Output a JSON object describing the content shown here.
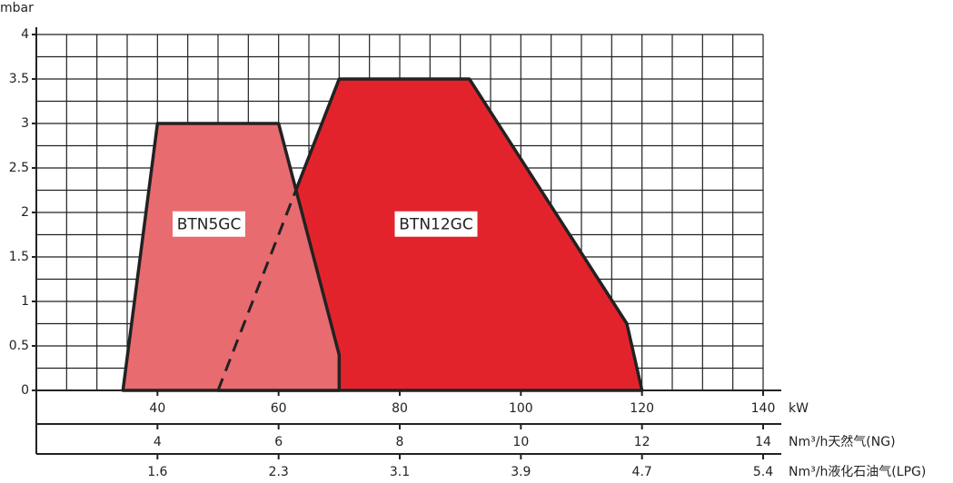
{
  "chart_data": {
    "type": "area",
    "y_label": "mbar",
    "x_label": "kW",
    "xlim": [
      20,
      140
    ],
    "xticks": [
      40,
      60,
      80,
      100,
      120,
      140
    ],
    "ylim": [
      0,
      4
    ],
    "yticks": [
      0,
      0.5,
      1,
      1.5,
      2,
      2.5,
      3,
      3.5,
      4
    ],
    "grid": true,
    "secondary_x_axes": [
      {
        "label": "Nm³/h天然气(NG)",
        "ticks": [
          4,
          6,
          8,
          10,
          12,
          14
        ]
      },
      {
        "label": "Nm³/h液化石油气(LPG)",
        "ticks": [
          1.6,
          2.3,
          3.1,
          3.9,
          4.7,
          5.4
        ]
      }
    ],
    "series": [
      {
        "name": "BTN12GC",
        "color": "#e3232b",
        "x": [
          50,
          70,
          91.5,
          117.5,
          120
        ],
        "values": [
          0,
          3.5,
          3.5,
          0.75,
          0
        ]
      },
      {
        "name": "BTN5GC",
        "color": "#e86b70",
        "x": [
          34.3,
          40,
          60,
          70,
          70
        ],
        "values": [
          0,
          3,
          3,
          0.4,
          0
        ]
      }
    ]
  }
}
